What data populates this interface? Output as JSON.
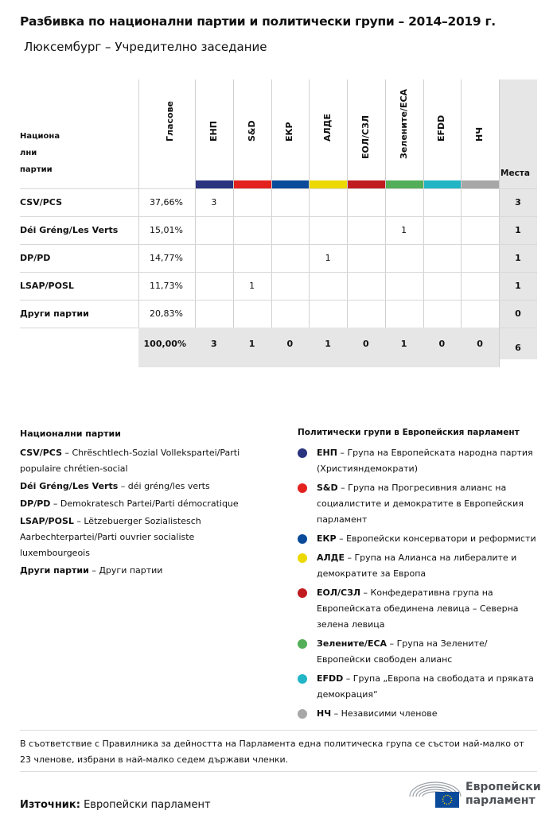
{
  "title": "Разбивка по национални партии и политически групи – 2014–2019 г.",
  "subtitle": "Люксембург – Учредително заседание",
  "table": {
    "party_header": [
      "Национа",
      "лни",
      "партии"
    ],
    "votes_header": "Гласове",
    "seats_header": "Места",
    "groups": [
      {
        "label": "ЕНП",
        "color": "#2a347f"
      },
      {
        "label": "S&D",
        "color": "#e3211e"
      },
      {
        "label": "ЕКР",
        "color": "#0a4a9a"
      },
      {
        "label": "АЛДЕ",
        "color": "#ebd900"
      },
      {
        "label": "ЕОЛ/СЗЛ",
        "color": "#c01c20"
      },
      {
        "label": "Зелените/ЕСА",
        "color": "#52ae58"
      },
      {
        "label": "EFDD",
        "color": "#22b5c5"
      },
      {
        "label": "НЧ",
        "color": "#a7a7a7"
      }
    ],
    "rows": [
      {
        "party": "CSV/PCS",
        "votes": "37,66%",
        "cells": [
          "3",
          "",
          "",
          "",
          "",
          "",
          "",
          ""
        ],
        "seats": "3"
      },
      {
        "party": "Déi Gréng/Les Verts",
        "votes": "15,01%",
        "cells": [
          "",
          "",
          "",
          "",
          "",
          "1",
          "",
          ""
        ],
        "seats": "1"
      },
      {
        "party": "DP/PD",
        "votes": "14,77%",
        "cells": [
          "",
          "",
          "",
          "1",
          "",
          "",
          "",
          ""
        ],
        "seats": "1"
      },
      {
        "party": "LSAP/POSL",
        "votes": "11,73%",
        "cells": [
          "",
          "1",
          "",
          "",
          "",
          "",
          "",
          ""
        ],
        "seats": "1"
      },
      {
        "party": "Други партии",
        "votes": "20,83%",
        "cells": [
          "",
          "",
          "",
          "",
          "",
          "",
          "",
          ""
        ],
        "seats": "0"
      }
    ],
    "total": {
      "votes": "100,00%",
      "cells": [
        "3",
        "1",
        "0",
        "1",
        "0",
        "1",
        "0",
        "0"
      ],
      "seats": "6"
    }
  },
  "legend_parties": {
    "heading": "Национални партии",
    "items": [
      {
        "abbr": "CSV/PCS",
        "desc": "Chrëschtlech-Sozial Vollekspartei/Parti populaire chrétien-social"
      },
      {
        "abbr": "Déi Gréng/Les Verts",
        "desc": "déi gréng/les verts"
      },
      {
        "abbr": "DP/PD",
        "desc": "Demokratesch Partei/Parti démocratique"
      },
      {
        "abbr": "LSAP/POSL",
        "desc": "Lëtzebuerger Sozialistesch Aarbechterpartei/Parti ouvrier socialiste luxembourgeois"
      },
      {
        "abbr": "Други партии",
        "desc": "Други партии"
      }
    ]
  },
  "legend_groups": {
    "heading": "Политически групи в Европейския парламент",
    "items": [
      {
        "abbr": "ЕНП",
        "desc": "Група на Европейската народна партия (Християндемократи)",
        "color": "#2a347f"
      },
      {
        "abbr": "S&D",
        "desc": "Група на Прогресивния алианс на социалистите и демократите в Европейския парламент",
        "color": "#e3211e"
      },
      {
        "abbr": "ЕКР",
        "desc": "Европейски консерватори и реформисти",
        "color": "#0a4a9a"
      },
      {
        "abbr": "АЛДЕ",
        "desc": "Група на Алианса на либералите и демократите за Европа",
        "color": "#ebd900"
      },
      {
        "abbr": "ЕОЛ/СЗЛ",
        "desc": "Конфедеративна група на Европейската обединена левица – Северна зелена левица",
        "color": "#c01c20"
      },
      {
        "abbr": "Зелените/ЕСА",
        "desc": "Група на Зелените/ Европейски свободен алианс",
        "color": "#52ae58"
      },
      {
        "abbr": "EFDD",
        "desc": "Група „Европа на свободата и пряката демокрация“",
        "color": "#22b5c5"
      },
      {
        "abbr": "НЧ",
        "desc": "Независими членове",
        "color": "#a7a7a7"
      }
    ]
  },
  "note": "В съответствие с Правилника за дейността на Парламента една политическа група се състои най-малко от 23 членове, избрани в най-малко седем държави членки.",
  "source_label": "Източник:",
  "source": "Европейски парламент",
  "logo": {
    "line1": "Европейски",
    "line2": "парламент"
  }
}
